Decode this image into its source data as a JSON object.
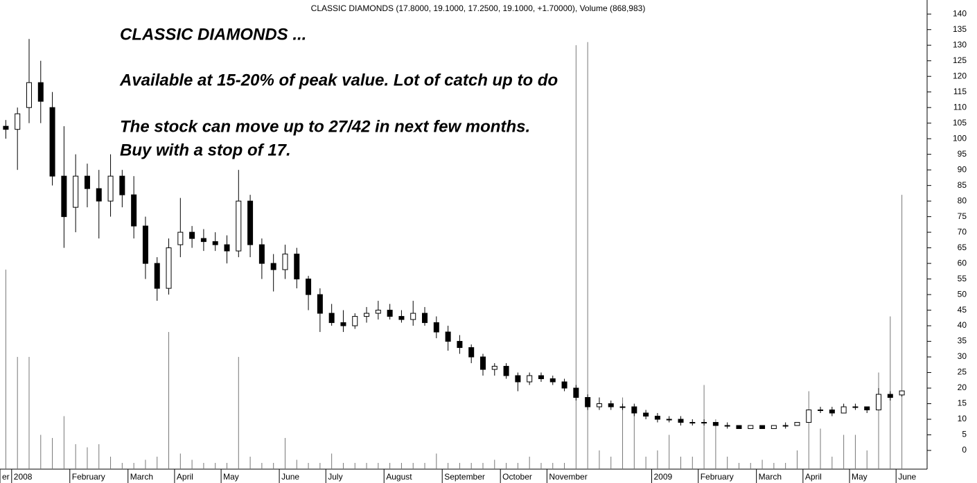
{
  "chart_data": {
    "type": "candlestick",
    "title": "CLASSIC DIAMONDS (17.8000, 19.1000, 17.2500, 19.1000, +1.70000), Volume (868,983)",
    "annotations": [
      "CLASSIC DIAMONDS ...",
      "Available at 15-20% of peak value. Lot of catch up to do",
      "The stock can move up to 27/42 in next few months.",
      "Buy with a stop of 17."
    ],
    "categories": [
      "er",
      "2008",
      null,
      null,
      null,
      null,
      "February",
      null,
      null,
      null,
      null,
      "March",
      null,
      null,
      null,
      "April",
      null,
      null,
      null,
      "May",
      null,
      null,
      null,
      null,
      "June",
      null,
      null,
      null,
      "July",
      null,
      null,
      null,
      null,
      "August",
      null,
      null,
      null,
      null,
      "September",
      null,
      null,
      null,
      null,
      "October",
      null,
      null,
      null,
      "November",
      null,
      null,
      null,
      null,
      null,
      null,
      null,
      null,
      "2009",
      null,
      null,
      null,
      "February",
      null,
      null,
      null,
      null,
      "March",
      null,
      null,
      null,
      "April",
      null,
      null,
      null,
      "May",
      null,
      null,
      null,
      "June"
    ],
    "open": [
      104,
      103,
      110,
      118,
      110,
      88,
      78,
      88,
      84,
      80,
      88,
      82,
      72,
      60,
      52,
      66,
      70,
      68,
      67,
      66,
      64,
      80,
      66,
      60,
      58,
      63,
      55,
      50,
      44,
      41,
      40,
      43,
      44,
      45,
      43,
      42,
      44,
      41,
      38,
      35,
      33,
      30,
      26,
      27,
      24,
      22,
      24,
      23,
      22,
      20,
      17,
      14,
      15,
      14,
      14,
      12,
      11,
      10,
      10,
      9,
      9,
      9,
      8,
      8,
      7,
      8,
      7,
      8,
      8,
      9,
      13,
      13,
      12,
      14,
      14,
      13,
      18,
      17.8
    ],
    "high": [
      106,
      110,
      132,
      125,
      115,
      104,
      95,
      92,
      90,
      95,
      90,
      88,
      75,
      62,
      68,
      81,
      72,
      71,
      70,
      69,
      90,
      82,
      68,
      63,
      66,
      65,
      56,
      52,
      47,
      45,
      44,
      46,
      48,
      47,
      45,
      48,
      46,
      43,
      40,
      37,
      34,
      31,
      28,
      28,
      25,
      25,
      25,
      24,
      23,
      21,
      18,
      17,
      16,
      15,
      15,
      13,
      12,
      11,
      11,
      10,
      10,
      9,
      9,
      8,
      8,
      8,
      8,
      9,
      9,
      13,
      14,
      14,
      15,
      15,
      14,
      20,
      19,
      19.1
    ],
    "low": [
      100,
      90,
      105,
      105,
      85,
      65,
      70,
      78,
      68,
      75,
      78,
      68,
      55,
      48,
      50,
      62,
      65,
      64,
      64,
      60,
      62,
      62,
      55,
      51,
      55,
      52,
      45,
      38,
      40,
      38,
      39,
      41,
      42,
      42,
      41,
      40,
      40,
      36,
      32,
      31,
      28,
      24,
      24,
      23,
      19,
      21,
      22,
      21,
      19,
      16,
      13,
      13,
      13,
      13,
      11,
      10,
      9,
      9,
      8,
      8,
      8,
      8,
      7,
      7,
      7,
      7,
      7,
      7,
      8,
      9,
      12,
      11,
      12,
      13,
      12,
      13,
      16,
      17.25
    ],
    "close": [
      103,
      108,
      118,
      112,
      88,
      75,
      88,
      84,
      80,
      88,
      82,
      72,
      60,
      52,
      65,
      70,
      68,
      67,
      66,
      64,
      80,
      66,
      60,
      58,
      63,
      55,
      50,
      44,
      41,
      40,
      43,
      44,
      45,
      43,
      42,
      44,
      41,
      38,
      35,
      33,
      30,
      26,
      27,
      24,
      22,
      24,
      23,
      22,
      20,
      17,
      14,
      15,
      14,
      14,
      12,
      11,
      10,
      10,
      9,
      9,
      9,
      8,
      8,
      7,
      8,
      7,
      8,
      8,
      9,
      13,
      13,
      12,
      14,
      14,
      13,
      18,
      17,
      19.1
    ],
    "volume": [
      58,
      30,
      30,
      5,
      4,
      11,
      2,
      1,
      2,
      -2,
      -4,
      -4,
      -3,
      -2,
      38,
      -1,
      -3,
      -4,
      -4,
      -4,
      30,
      -2,
      -4,
      -4,
      4,
      -3,
      -4,
      -4,
      -1,
      -4,
      -4,
      -4,
      -4,
      -4,
      -4,
      -4,
      -4,
      -1,
      -4,
      -4,
      -4,
      -4,
      -3,
      -4,
      -4,
      -2,
      -4,
      -4,
      -4,
      130,
      131,
      0,
      -2,
      17,
      14,
      -2,
      0,
      5,
      -2,
      -2,
      21,
      10,
      -2,
      -4,
      -4,
      -3,
      -4,
      -4,
      0,
      19,
      7,
      -2,
      5,
      5,
      0,
      25,
      43,
      82
    ],
    "up_color": "#ffffff",
    "down_color": "#000000",
    "volume_color": "#777777",
    "ylim": [
      -6,
      144.5
    ],
    "yticks": [
      0,
      5,
      10,
      15,
      20,
      25,
      30,
      35,
      40,
      45,
      50,
      55,
      60,
      65,
      70,
      75,
      80,
      85,
      90,
      95,
      100,
      105,
      110,
      115,
      120,
      125,
      130,
      135,
      140
    ],
    "y_axis_side": "right"
  }
}
